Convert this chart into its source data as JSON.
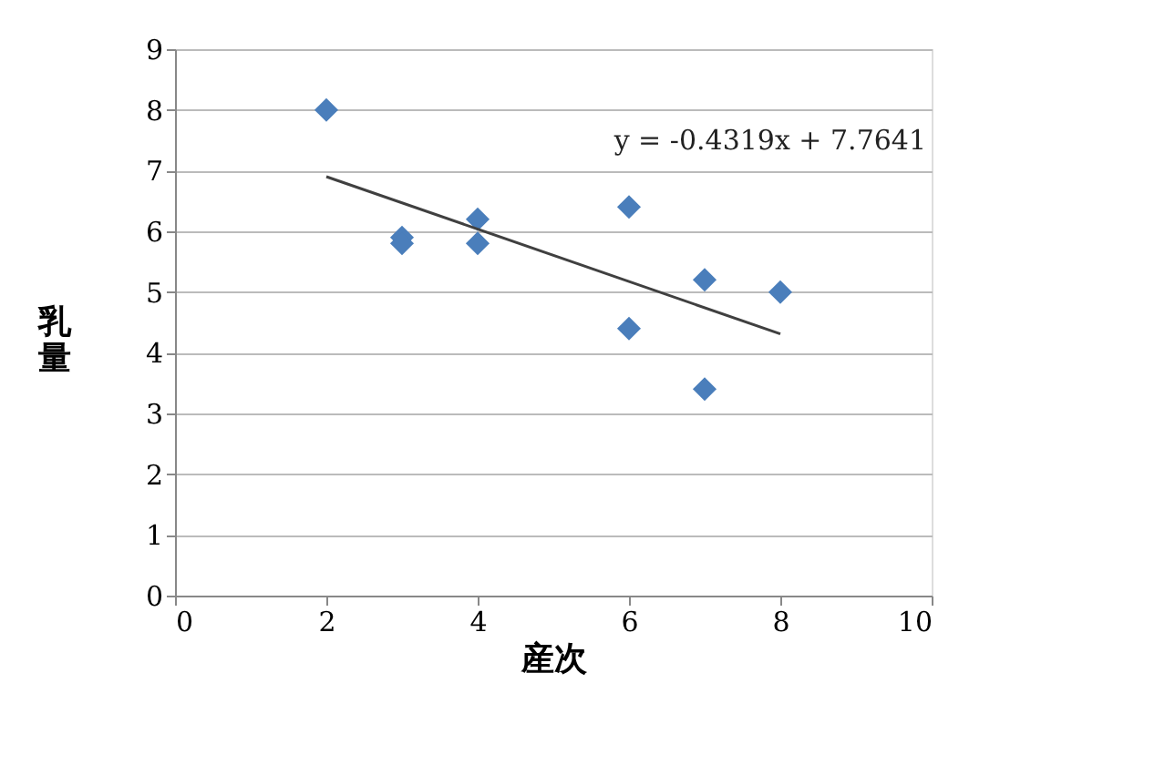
{
  "chart_data": {
    "type": "scatter",
    "xlabel": "産次",
    "ylabel": "乳量",
    "xlim": [
      0,
      10
    ],
    "ylim": [
      0,
      9
    ],
    "xticks": [
      0,
      2,
      4,
      6,
      8,
      10
    ],
    "yticks": [
      0,
      1,
      2,
      3,
      4,
      5,
      6,
      7,
      8,
      9
    ],
    "grid": "y",
    "marker": "diamond",
    "annotations": [
      "y = -0.4319x + 7.7641"
    ],
    "series": [
      {
        "color": "#4a7ebb",
        "x": [
          2,
          3,
          3,
          4,
          4,
          6,
          6,
          7,
          7,
          8
        ],
        "values": [
          8.0,
          5.9,
          5.8,
          6.2,
          5.8,
          6.4,
          4.4,
          5.2,
          3.4,
          5.0
        ]
      },
      {
        "type": "line",
        "color": "#404040",
        "x": [
          2,
          8
        ],
        "values": [
          6.9,
          4.31
        ],
        "marker": "none",
        "line_style": "solid"
      }
    ]
  }
}
